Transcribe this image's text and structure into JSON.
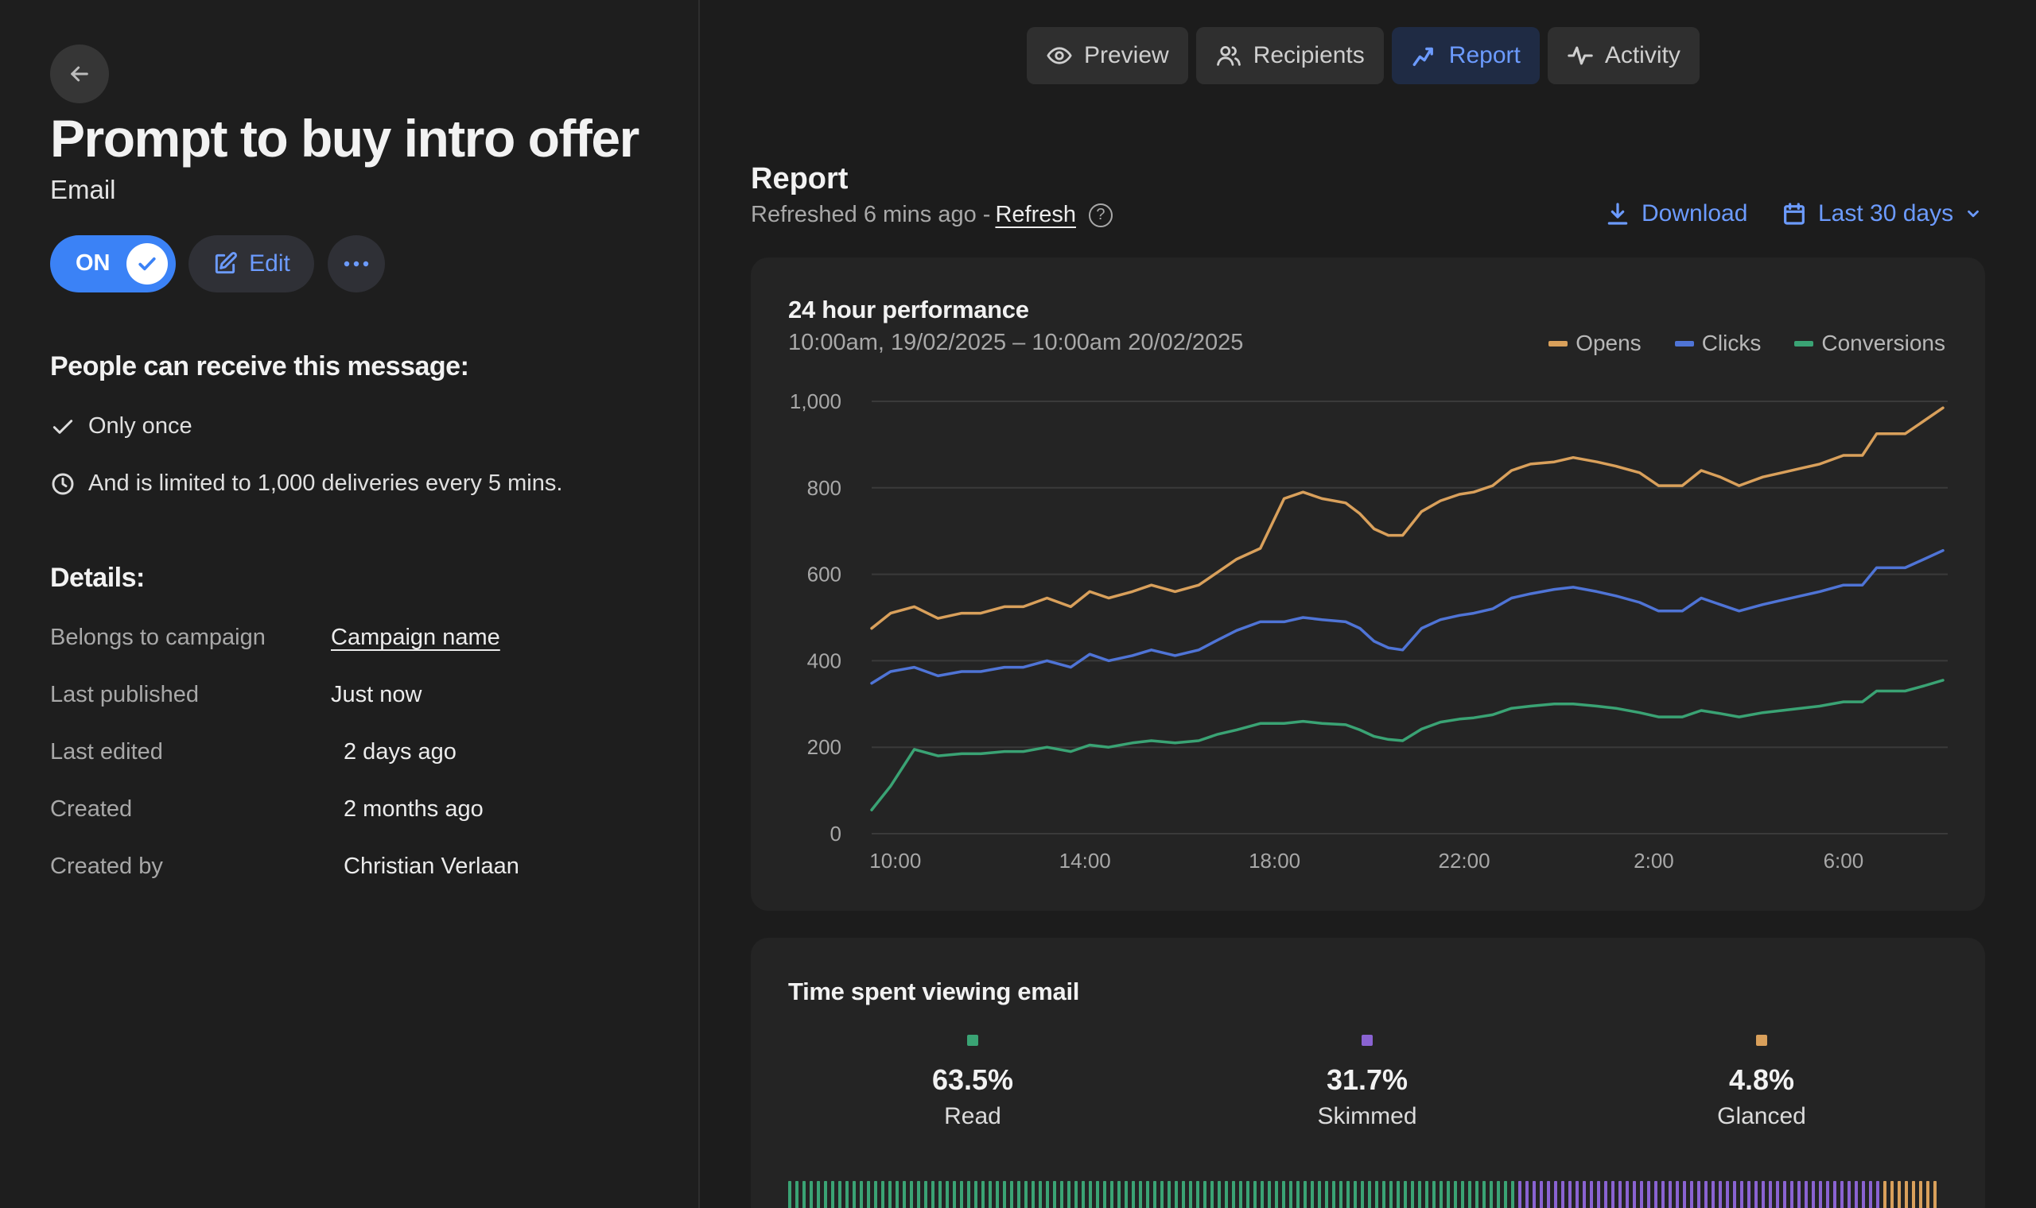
{
  "campaign": {
    "title": "Prompt to buy intro offer",
    "channel": "Email",
    "toggle_label": "ON",
    "edit_label": "Edit"
  },
  "audience": {
    "heading": "People can receive this message:",
    "conditions": [
      {
        "icon": "check-icon",
        "text": "Only once"
      },
      {
        "icon": "clock-icon",
        "text": "And is limited to 1,000 deliveries every 5 mins."
      }
    ]
  },
  "details": {
    "heading": "Details:",
    "rows": [
      {
        "label": "Belongs to campaign",
        "value": "Campaign name"
      },
      {
        "label": "Last published",
        "value": "Just now"
      },
      {
        "label": "Last edited",
        "value": "2 days ago"
      },
      {
        "label": "Created",
        "value": "2 months ago"
      },
      {
        "label": "Created by",
        "value": "Christian Verlaan"
      }
    ]
  },
  "tabs": [
    {
      "label": "Preview",
      "icon": "eye-icon"
    },
    {
      "label": "Recipients",
      "icon": "users-icon"
    },
    {
      "label": "Report",
      "icon": "trend-icon",
      "active": true
    },
    {
      "label": "Activity",
      "icon": "pulse-icon"
    }
  ],
  "report": {
    "heading": "Report",
    "refreshed_text": "Refreshed 6 mins ago -",
    "refresh_link": "Refresh",
    "help": "?",
    "download_label": "Download",
    "range_label": "Last 30 days"
  },
  "colors": {
    "accent": "#6c9bff",
    "opens": "#d9a05b",
    "clicks": "#4f74d6",
    "conversions": "#3aa374",
    "skimmed": "#8a63d2"
  },
  "chart_data": {
    "type": "line",
    "title": "24 hour performance",
    "subtitle": "10:00am, 19/02/2025  –  10:00am 20/02/2025",
    "legend": [
      "Opens",
      "Clicks",
      "Conversions"
    ],
    "x_ticks": [
      "10:00",
      "14:00",
      "18:00",
      "22:00",
      "2:00",
      "6:00"
    ],
    "y_ticks": [
      "0",
      "200",
      "400",
      "600",
      "800",
      "1,000"
    ],
    "ylim": [
      0,
      1000
    ],
    "x_range_hours": [
      9.5,
      32.2
    ],
    "series": [
      {
        "name": "Opens",
        "x": [
          9.5,
          9.9,
          10.4,
          10.9,
          11.4,
          11.8,
          12.3,
          12.7,
          13.2,
          13.7,
          14.1,
          14.5,
          15.0,
          15.4,
          15.9,
          16.4,
          16.8,
          17.2,
          17.7,
          18.2,
          18.6,
          19.0,
          19.5,
          19.8,
          20.1,
          20.4,
          20.7,
          21.1,
          21.5,
          21.9,
          22.2,
          22.6,
          23.0,
          23.4,
          23.9,
          24.3,
          24.8,
          25.2,
          25.7,
          26.1,
          26.6,
          27.0,
          27.4,
          27.8,
          28.3,
          28.7,
          29.1,
          29.5,
          30.0,
          30.4,
          30.7,
          31.0,
          31.3,
          31.7,
          32.1
        ],
        "values": [
          475,
          510,
          525,
          498,
          510,
          510,
          525,
          525,
          545,
          525,
          560,
          545,
          560,
          575,
          560,
          575,
          605,
          635,
          660,
          775,
          790,
          775,
          765,
          740,
          705,
          690,
          690,
          745,
          770,
          785,
          790,
          805,
          840,
          855,
          860,
          870,
          860,
          850,
          835,
          805,
          805,
          840,
          825,
          805,
          825,
          835,
          845,
          855,
          875,
          875,
          925,
          925,
          925,
          955,
          985
        ]
      },
      {
        "name": "Clicks",
        "x": [
          9.5,
          9.9,
          10.4,
          10.9,
          11.4,
          11.8,
          12.3,
          12.7,
          13.2,
          13.7,
          14.1,
          14.5,
          15.0,
          15.4,
          15.9,
          16.4,
          16.8,
          17.2,
          17.7,
          18.2,
          18.6,
          19.0,
          19.5,
          19.8,
          20.1,
          20.4,
          20.7,
          21.1,
          21.5,
          21.9,
          22.2,
          22.6,
          23.0,
          23.4,
          23.9,
          24.3,
          24.8,
          25.2,
          25.7,
          26.1,
          26.6,
          27.0,
          27.4,
          27.8,
          28.3,
          28.7,
          29.1,
          29.5,
          30.0,
          30.4,
          30.7,
          31.0,
          31.3,
          31.7,
          32.1
        ],
        "values": [
          348,
          375,
          385,
          365,
          375,
          375,
          385,
          385,
          400,
          385,
          415,
          400,
          412,
          425,
          412,
          425,
          448,
          470,
          490,
          490,
          500,
          495,
          490,
          475,
          445,
          430,
          425,
          475,
          495,
          505,
          510,
          520,
          545,
          555,
          565,
          570,
          560,
          550,
          535,
          515,
          515,
          545,
          530,
          515,
          530,
          540,
          550,
          560,
          575,
          575,
          615,
          615,
          615,
          635,
          655
        ]
      },
      {
        "name": "Conversions",
        "x": [
          9.5,
          9.9,
          10.4,
          10.9,
          11.4,
          11.8,
          12.3,
          12.7,
          13.2,
          13.7,
          14.1,
          14.5,
          15.0,
          15.4,
          15.9,
          16.4,
          16.8,
          17.2,
          17.7,
          18.2,
          18.6,
          19.0,
          19.5,
          19.8,
          20.1,
          20.4,
          20.7,
          21.1,
          21.5,
          21.9,
          22.2,
          22.6,
          23.0,
          23.4,
          23.9,
          24.3,
          24.8,
          25.2,
          25.7,
          26.1,
          26.6,
          27.0,
          27.4,
          27.8,
          28.3,
          28.7,
          29.1,
          29.5,
          30.0,
          30.4,
          30.7,
          31.0,
          31.3,
          31.7,
          32.1
        ],
        "values": [
          55,
          110,
          195,
          180,
          185,
          185,
          190,
          190,
          200,
          190,
          205,
          200,
          210,
          215,
          210,
          215,
          230,
          240,
          255,
          255,
          260,
          255,
          252,
          240,
          225,
          218,
          215,
          242,
          258,
          265,
          268,
          275,
          290,
          295,
          300,
          300,
          295,
          290,
          280,
          270,
          270,
          285,
          278,
          270,
          280,
          285,
          290,
          295,
          305,
          305,
          330,
          330,
          330,
          342,
          355
        ]
      }
    ]
  },
  "time_viewing": {
    "heading": "Time spent viewing email",
    "stats": [
      {
        "pct": "63.5%",
        "label": "Read",
        "color": "#3aa374"
      },
      {
        "pct": "31.7%",
        "label": "Skimmed",
        "color": "#8a63d2"
      },
      {
        "pct": "4.8%",
        "label": "Glanced",
        "color": "#d9a05b"
      }
    ]
  }
}
